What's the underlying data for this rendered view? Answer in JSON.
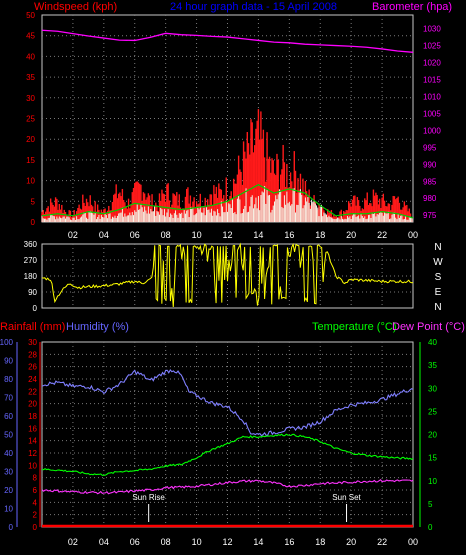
{
  "colors": {
    "background": "#000000",
    "frame": "#c8c8c8",
    "grid": "#7a7a7a",
    "windspeed": "#ff0000",
    "gust_fill": "#ff1a1a",
    "avg_wind": "#00cc00",
    "wind_core": "#f5f5e8",
    "barometer": "#ff00ff",
    "direction": "#ffff00",
    "rainfall": "#ff0000",
    "humidity": "#7f7fff",
    "temperature": "#00ff00",
    "dewpoint": "#ff33ff",
    "hours": "#ffffff",
    "title": "#0000ff",
    "axis_purple": "#ff00ff",
    "axis_green": "#00ff00",
    "axis_blue": "#6666ff",
    "axis_red": "#ff0000"
  },
  "chart_data": [
    {
      "type": "area",
      "title": "24 hour graph data - 15 April 2008",
      "xlabel": "",
      "x_ticks": [
        "02",
        "04",
        "06",
        "08",
        "10",
        "12",
        "14",
        "16",
        "18",
        "20",
        "22",
        "00"
      ],
      "x_range_hours": [
        0,
        24
      ],
      "left_axis_label": "Windspeed (kph)",
      "right_axis_label": "Barometer (hpa)",
      "left_ticks": [
        0,
        5,
        10,
        15,
        20,
        25,
        30,
        35,
        40,
        45,
        50
      ],
      "right_ticks": [
        975,
        980,
        985,
        990,
        995,
        1000,
        1005,
        1010,
        1015,
        1020,
        1025,
        1030
      ],
      "ylim_left": [
        0,
        50
      ],
      "ylim_right": [
        973,
        1034
      ],
      "grid": true,
      "series": [
        {
          "role": "gust",
          "axis": "left",
          "x": [
            0,
            0.5,
            1,
            1.5,
            2,
            2.5,
            3,
            3.5,
            4,
            4.5,
            5,
            5.5,
            6,
            6.5,
            7,
            7.5,
            8,
            8.5,
            9,
            9.5,
            10,
            10.5,
            11,
            11.5,
            12,
            12.5,
            13,
            13.5,
            14,
            14.5,
            15,
            15.5,
            16,
            16.5,
            17,
            17.5,
            18,
            18.5,
            19,
            19.5,
            20,
            20.5,
            21,
            21.5,
            22,
            22.5,
            23,
            23.5,
            24
          ],
          "values": [
            3,
            5,
            6,
            3,
            2,
            5,
            7,
            4,
            3,
            6,
            9,
            5,
            8,
            11,
            6,
            5,
            9,
            7,
            6,
            8,
            7,
            6,
            9,
            8,
            10,
            12,
            17,
            21,
            24,
            19,
            14,
            16,
            14,
            15,
            9,
            6,
            5,
            3,
            2,
            3,
            6,
            5,
            6,
            7,
            6,
            5,
            7,
            4,
            2
          ]
        },
        {
          "role": "average",
          "axis": "left",
          "x": [
            0,
            1,
            2,
            3,
            4,
            5,
            6,
            7,
            8,
            9,
            10,
            11,
            12,
            13,
            14,
            15,
            16,
            17,
            18,
            19,
            20,
            21,
            22,
            23,
            24
          ],
          "values": [
            1.5,
            2,
            1.5,
            2.5,
            2,
            3,
            4.5,
            4,
            3.5,
            3,
            3.5,
            4,
            5,
            7,
            9,
            7,
            8,
            7,
            4,
            1.5,
            2,
            2,
            2.5,
            2,
            1
          ]
        },
        {
          "role": "barometer",
          "axis": "right",
          "x": [
            0,
            1,
            2,
            3,
            4,
            5,
            6,
            7,
            8,
            9,
            10,
            11,
            12,
            13,
            14,
            15,
            16,
            17,
            18,
            19,
            20,
            21,
            22,
            23,
            24
          ],
          "values": [
            1029.5,
            1029.2,
            1028.5,
            1027.8,
            1027.2,
            1026.6,
            1026.5,
            1027.4,
            1028.6,
            1028.2,
            1028,
            1027.7,
            1027.5,
            1027,
            1026.5,
            1026,
            1025.8,
            1025.4,
            1025.2,
            1025,
            1024.8,
            1024.5,
            1024,
            1023.4,
            1023
          ]
        }
      ]
    },
    {
      "type": "line",
      "left_ticks": [
        0,
        90,
        180,
        270,
        360
      ],
      "right_labels": [
        "N",
        "W",
        "S",
        "E",
        "N"
      ],
      "ylim": [
        0,
        360
      ],
      "x_range_hours": [
        0,
        24
      ],
      "series": [
        {
          "role": "wind_direction",
          "x": [
            0,
            0.6,
            0.8,
            1.3,
            1.8,
            2.3,
            3,
            4,
            5,
            6,
            6.5,
            7.1,
            7.4,
            7.9,
            8.5,
            9,
            9.5,
            10,
            10.8,
            11.5,
            12,
            12.4,
            12.8,
            13.2,
            14,
            14.8,
            15,
            15.5,
            16,
            16.5,
            17,
            17.6,
            18,
            18.4,
            19,
            19.6,
            20,
            21,
            22,
            23,
            24
          ],
          "values": [
            170,
            160,
            40,
            100,
            140,
            115,
            120,
            125,
            135,
            150,
            140,
            165,
            345,
            200,
            60,
            330,
            250,
            345,
            310,
            80,
            200,
            340,
            330,
            120,
            40,
            330,
            300,
            80,
            340,
            330,
            200,
            330,
            40,
            330,
            180,
            140,
            160,
            155,
            150,
            150,
            148
          ]
        }
      ]
    },
    {
      "type": "line",
      "left_axis_label_rain": "Rainfall (mm)",
      "left_axis_label_humidity": "Humidity (%)",
      "right_axis_label_temp": "Temperature (°C)",
      "right_axis_label_dew": "Dew Point (°C)",
      "humidity_ticks": [
        0,
        10,
        20,
        30,
        40,
        50,
        60,
        70,
        80,
        90,
        100
      ],
      "rain_ticks": [
        0,
        2,
        4,
        6,
        8,
        10,
        12,
        14,
        16,
        18,
        20,
        22,
        24,
        26,
        28,
        30
      ],
      "temp_ticks": [
        0,
        5,
        10,
        15,
        20,
        25,
        30,
        35,
        40
      ],
      "ylim_humidity": [
        0,
        100
      ],
      "ylim_rain": [
        0,
        30
      ],
      "ylim_temp": [
        0,
        40
      ],
      "x_range_hours": [
        0,
        24
      ],
      "annotations": [
        {
          "text": "Sun Rise",
          "hour": 6.9
        },
        {
          "text": "Sun Set",
          "hour": 19.7
        }
      ],
      "series": [
        {
          "role": "humidity",
          "axis": "humidity",
          "x": [
            0,
            1,
            2,
            3,
            4,
            5,
            6,
            6.5,
            7,
            8,
            8.5,
            9,
            9.5,
            10,
            11,
            12,
            13,
            13.5,
            14,
            15,
            16,
            17,
            18,
            19,
            20,
            21,
            22,
            23,
            24
          ],
          "values": [
            77,
            78,
            76,
            76,
            73,
            77,
            84,
            82,
            79,
            84,
            85,
            82,
            73,
            71,
            67,
            65,
            58,
            51,
            50,
            51,
            53,
            54,
            57,
            63,
            66,
            67,
            69,
            72,
            75
          ]
        },
        {
          "role": "temperature",
          "axis": "temp",
          "x": [
            0,
            1,
            2,
            3,
            4,
            5,
            6,
            7,
            8,
            9,
            10,
            11,
            12,
            13,
            14,
            15,
            16,
            17,
            18,
            19,
            20,
            21,
            22,
            23,
            24
          ],
          "values": [
            12.5,
            12.3,
            12,
            11.5,
            11.3,
            12,
            12.2,
            12.5,
            13.2,
            13.5,
            15,
            16.8,
            18,
            19.5,
            19.5,
            19.8,
            20,
            19.5,
            18.5,
            17,
            16,
            15.5,
            15.2,
            14.9,
            14.8
          ]
        },
        {
          "role": "dewpoint",
          "axis": "temp",
          "x": [
            0,
            1,
            2,
            3,
            4,
            5,
            6,
            7,
            8,
            9,
            10,
            11,
            12,
            13,
            14,
            15,
            16,
            17,
            18,
            19,
            20,
            21,
            22,
            23,
            24
          ],
          "values": [
            8,
            7.8,
            7.6,
            7.5,
            7.4,
            7.5,
            7.8,
            8,
            8.5,
            8.6,
            8.8,
            9.2,
            9.6,
            9.9,
            10,
            9.5,
            8.8,
            9,
            9.4,
            9.5,
            9.7,
            9.9,
            10,
            10,
            10
          ]
        },
        {
          "role": "rainfall",
          "axis": "rain",
          "x": [
            0,
            24
          ],
          "values": [
            0,
            0
          ]
        }
      ]
    }
  ]
}
